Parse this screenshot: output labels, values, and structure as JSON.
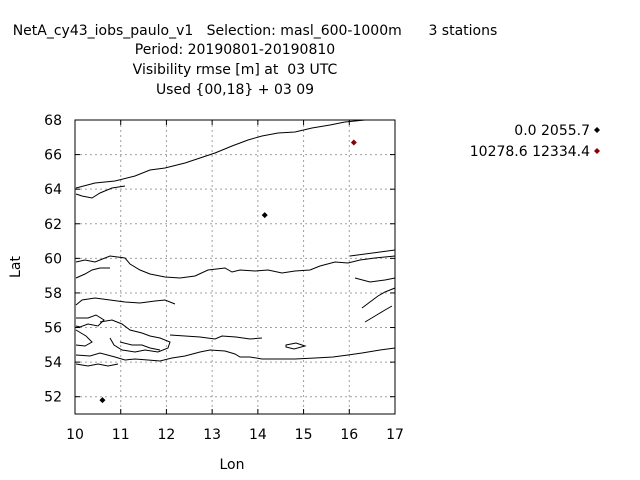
{
  "header": {
    "line1": "NetA_cy43_iobs_paulo_v1   Selection: masl_600-1000m      3 stations",
    "line2": "Period: 20190801-20190810",
    "line3": "Visibility rmse [m] at  03 UTC",
    "line4": "Used {00,18} + 03 09"
  },
  "colors": {
    "series_black": "#000000",
    "series_red": "#8b0000",
    "grid": "#a0a0a0"
  },
  "chart_data": {
    "type": "scatter",
    "title": "NetA_cy43_iobs_paulo_v1   Selection: masl_600-1000m      3 stations",
    "subtitle": [
      "Period: 20190801-20190810",
      "Visibility rmse [m] at  03 UTC",
      "Used {00,18} + 03 09"
    ],
    "xlabel": "Lon",
    "ylabel": "Lat",
    "xlim": [
      10,
      17
    ],
    "ylim": [
      51,
      68
    ],
    "xticks": [
      "10",
      "11",
      "12",
      "13",
      "14",
      "15",
      "16",
      "17"
    ],
    "yticks": [
      "52",
      "54",
      "56",
      "58",
      "60",
      "62",
      "64",
      "66",
      "68"
    ],
    "grid": true,
    "legend_position": "right",
    "series": [
      {
        "name": "0.0 2055.7",
        "color": "#000000",
        "points": [
          {
            "x": 10.6,
            "y": 51.8
          },
          {
            "x": 14.15,
            "y": 62.5
          }
        ]
      },
      {
        "name": "10278.6 12334.4",
        "color": "#8b0000",
        "points": [
          {
            "x": 16.1,
            "y": 66.7
          }
        ]
      }
    ]
  }
}
